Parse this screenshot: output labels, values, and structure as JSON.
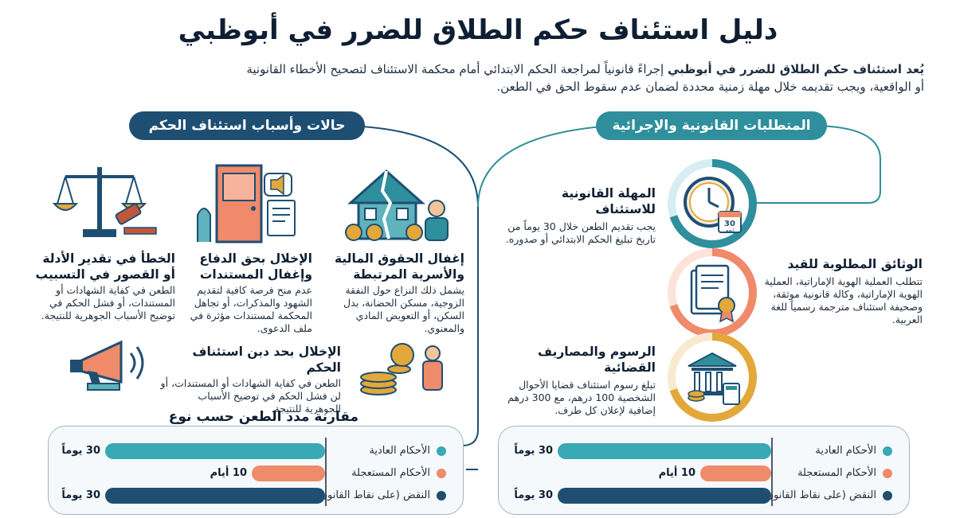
{
  "title": "دليل استئناف حكم الطلاق للضرر في أبوظبي",
  "intro": {
    "bold": "يُعد استئناف حكم الطلاق للضرر في أبوظبي",
    "line1_rest": " إجراءً قانونياً لمراجعة الحكم الابتدائي أمام محكمة الاستئناف لتصحيح الأخطاء القانونية",
    "line2": "أو الواقعية، ويجب تقديمه خلال مهلة زمنية محددة لضمان عدم سقوط الحق في الطعن."
  },
  "right_section": {
    "header": "المتطلبات القانونية والإجرائية",
    "items": [
      {
        "title": "المهلة القانونية للاستئناف",
        "text": "يجب تقديم الطعن خلال 30 يوماً من تاريخ تبليغ الحكم الابتدائي أو صدوره.",
        "icon": "clock-calendar-icon",
        "calendar_num": "30",
        "calendar_sub": "ايوم"
      },
      {
        "title": "الوثائق المطلوبة للقيد",
        "text": "تتطلب العملية الهوية الإماراتية، العملية الهوية الإماراتية، وكالة قانونية موثقة، وصحيفة استئناف مترجمة رسمياً للغة العربية.",
        "icon": "document-seal-icon"
      },
      {
        "title": "الرسوم والمصاريف القضائية",
        "text": "تبلغ رسوم استئناف قضايا الأحوال الشخصية 100 درهم، مع 300 درهم إضافية لإعلان كل طرف.",
        "icon": "court-fees-icon"
      }
    ]
  },
  "left_section": {
    "header": "حالات وأسباب استئناف الحكم",
    "cases": [
      {
        "title": "إغفال الحقوق المالية والأسرية المرتبطة",
        "text": "يشمل ذلك النزاع حول النفقة الزوجية، مسكن الحضانة، بدل السكن، أو التعويض المادي والمعنوي.",
        "icon": "broken-house-icon"
      },
      {
        "title": "الإخلال بحق الدفاع وإغفال المستندات",
        "text": "عدم منح فرصة كافية لتقديم الشهود والمذكرات، أو تجاهل المحكمة لمستندات مؤثرة في ملف الدعوى.",
        "icon": "door-document-icon"
      },
      {
        "title": "الخطأ في تقدير الأدلة أو القصور في التسبيب",
        "text": "الطعن في كفاية الشهادات أو المستندات، أو فشل الحكم في توضيح الأسباب الجوهرية للنتيجة.",
        "icon": "scales-gavel-icon"
      },
      {
        "title": "الإخلال بحد دبن استئناف الحكم",
        "text": "الطعن في كفاية الشهادات أو المستندات، أو لن فشل الحكم في توضيح الأسباب الجوهرية للنتيجة.",
        "icon": "coins-person-icon"
      },
      {
        "icon": "megaphone-icon"
      }
    ],
    "chart_title": "مقارنة مدد الطعن حسب نوع الحكم"
  },
  "comparison_rows": [
    {
      "label": "الأحكام العادية",
      "value": "30 يوماً",
      "days": 30,
      "color": "#39a9b6"
    },
    {
      "label": "الأحكام المستعجلة",
      "value": "10 أيام",
      "days": 10,
      "color": "#ef8a6b"
    },
    {
      "label": "النقض (على نقاط القانون)",
      "value": "30 يوماً",
      "days": 30,
      "color": "#1e4f73"
    }
  ],
  "colors": {
    "teal": "#2f8f9c",
    "navy": "#1e4f73",
    "orange": "#ef8a6b",
    "gold": "#e3a83a"
  }
}
